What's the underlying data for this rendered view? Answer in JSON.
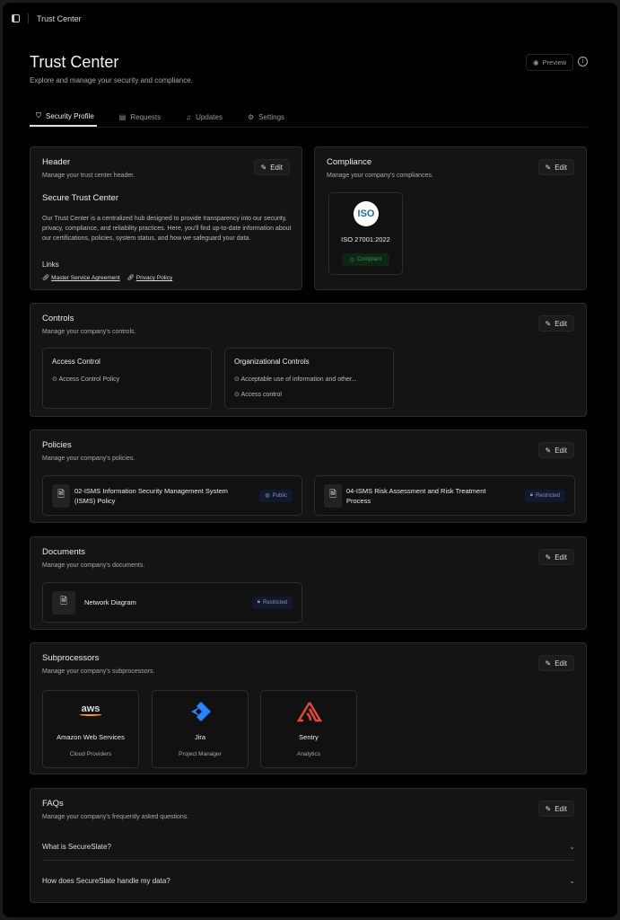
{
  "topbar": {
    "title": "Trust Center"
  },
  "page": {
    "title": "Trust Center",
    "subtitle": "Explore and manage your security and compliance.",
    "preview": "Preview"
  },
  "tabs": [
    "Security Profile",
    "Requests",
    "Updates",
    "Settings"
  ],
  "edit_label": "Edit",
  "header_card": {
    "title": "Header",
    "subtitle": "Manage your trust center header.",
    "heading": "Secure Trust Center",
    "body": "Our Trust Center is a centralized hub designed to provide transparency into our security, privacy, compliance, and reliability practices. Here, you'll find up-to-date information about our certifications, policies, system status, and how we safeguard your data.",
    "links_label": "Links",
    "links": [
      "Master Service Agreement",
      "Privacy Policy"
    ]
  },
  "compliance": {
    "title": "Compliance",
    "subtitle": "Manage your company's compliances.",
    "logo_text": "ISO",
    "item": "ISO 27001:2022",
    "status": "Compliant",
    "status_color": "#2f9e4f"
  },
  "controls": {
    "title": "Controls",
    "subtitle": "Manage your company's controls.",
    "groups": [
      {
        "name": "Access Control",
        "items": [
          "Access Control Policy"
        ]
      },
      {
        "name": "Organizational Controls",
        "items": [
          "Acceptable use of information and other...",
          "Access control"
        ]
      }
    ]
  },
  "policies": {
    "title": "Policies",
    "subtitle": "Manage your company's policies.",
    "items": [
      {
        "name": "02-ISMS Information Security Management System (ISMS) Policy",
        "badge": "Public"
      },
      {
        "name": "04-ISMS Risk Assessment and Risk Treatment Process",
        "badge": "Restricted"
      }
    ]
  },
  "documents": {
    "title": "Documents",
    "subtitle": "Manage your company's documents.",
    "items": [
      {
        "name": "Network Diagram",
        "badge": "Restricted"
      }
    ]
  },
  "subprocessors": {
    "title": "Subprocessors",
    "subtitle": "Manage your company's subprocessors.",
    "items": [
      {
        "name": "Amazon Web Services",
        "category": "Cloud Providers",
        "logo": "aws"
      },
      {
        "name": "Jira",
        "category": "Project Manager",
        "logo": "jira"
      },
      {
        "name": "Sentry",
        "category": "Analytics",
        "logo": "sentry"
      }
    ]
  },
  "faqs": {
    "title": "FAQs",
    "subtitle": "Manage your company's frequently asked questions.",
    "items": [
      "What is SecureSlate?",
      "How does SecureSlate handle my data?"
    ]
  }
}
